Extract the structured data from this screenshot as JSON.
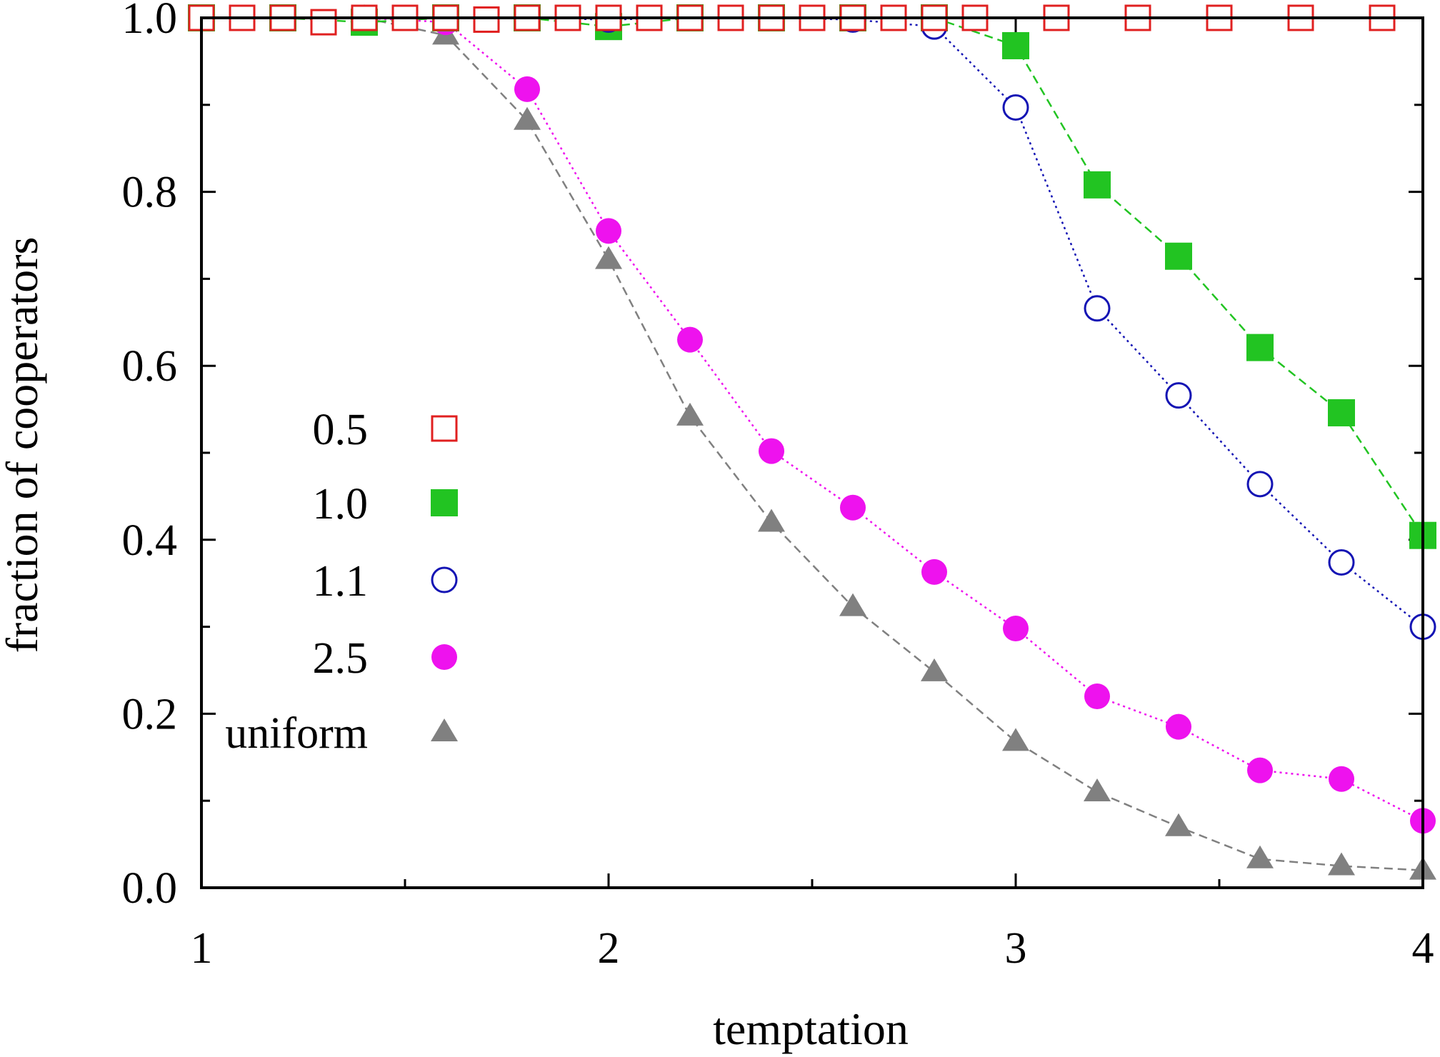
{
  "chart_data": {
    "type": "line",
    "xlabel": "temptation",
    "ylabel": "fraction of cooperators",
    "xlim": [
      1,
      4
    ],
    "ylim": [
      0,
      1
    ],
    "xticks_major": [
      1,
      2,
      3,
      4
    ],
    "xtick_labels": [
      "1",
      "2",
      "3",
      "4"
    ],
    "xticks_minor": [
      1.5,
      2.5,
      3.5
    ],
    "yticks": [
      0.0,
      0.2,
      0.4,
      0.6,
      0.8,
      1.0
    ],
    "ytick_labels": [
      "0.0",
      "0.2",
      "0.4",
      "0.6",
      "0.8",
      "1.0"
    ],
    "yticks_minor": [
      0.1,
      0.3,
      0.5,
      0.7,
      0.9
    ],
    "grid": false,
    "legend_position": "center-left",
    "series": [
      {
        "name": "0.5",
        "marker": "open-square",
        "line": "none",
        "color": "#e02020",
        "x": [
          1.0,
          1.1,
          1.2,
          1.3,
          1.4,
          1.5,
          1.6,
          1.7,
          1.8,
          1.9,
          2.0,
          2.1,
          2.2,
          2.3,
          2.4,
          2.5,
          2.6,
          2.7,
          2.8,
          2.9,
          3.1,
          3.3,
          3.5,
          3.7,
          3.9
        ],
        "y": [
          1.0,
          1.0,
          1.0,
          0.995,
          1.0,
          1.0,
          1.0,
          0.998,
          1.0,
          1.0,
          1.0,
          1.0,
          1.0,
          1.0,
          1.0,
          1.0,
          1.0,
          1.0,
          1.0,
          1.0,
          1.0,
          1.0,
          1.0,
          1.0,
          1.0
        ]
      },
      {
        "name": "1.0",
        "marker": "filled-square",
        "line": "dashed",
        "color": "#22c422",
        "x": [
          1.0,
          1.2,
          1.4,
          1.6,
          1.8,
          2.0,
          2.2,
          2.4,
          2.6,
          2.8,
          3.0,
          3.2,
          3.4,
          3.6,
          3.8,
          4.0
        ],
        "y": [
          1.0,
          1.0,
          0.995,
          1.0,
          1.0,
          0.99,
          1.0,
          1.0,
          1.0,
          1.0,
          0.968,
          0.808,
          0.726,
          0.621,
          0.546,
          0.405
        ]
      },
      {
        "name": "1.1",
        "marker": "open-circle",
        "line": "dotted",
        "color": "#1414b4",
        "x": [
          1.0,
          1.2,
          1.4,
          1.6,
          1.8,
          2.0,
          2.2,
          2.4,
          2.6,
          2.8,
          3.0,
          3.2,
          3.4,
          3.6,
          3.8,
          4.0
        ],
        "y": [
          1.0,
          1.0,
          1.0,
          1.0,
          1.0,
          0.998,
          1.0,
          1.0,
          0.998,
          0.99,
          0.897,
          0.666,
          0.566,
          0.464,
          0.374,
          0.3
        ]
      },
      {
        "name": "2.5",
        "marker": "filled-circle",
        "line": "dotted",
        "color": "#ee12ee",
        "x": [
          1.0,
          1.2,
          1.4,
          1.6,
          1.8,
          2.0,
          2.2,
          2.4,
          2.6,
          2.8,
          3.0,
          3.2,
          3.4,
          3.6,
          3.8,
          4.0
        ],
        "y": [
          1.0,
          1.0,
          1.0,
          0.995,
          0.918,
          0.755,
          0.63,
          0.502,
          0.437,
          0.363,
          0.298,
          0.22,
          0.185,
          0.135,
          0.125,
          0.077
        ]
      },
      {
        "name": "uniform",
        "marker": "filled-triangle",
        "line": "dashed",
        "color": "#808080",
        "x": [
          1.0,
          1.2,
          1.4,
          1.6,
          1.8,
          2.0,
          2.2,
          2.4,
          2.6,
          2.8,
          3.0,
          3.2,
          3.4,
          3.6,
          3.8,
          4.0
        ],
        "y": [
          1.0,
          1.0,
          1.0,
          0.98,
          0.882,
          0.722,
          0.542,
          0.42,
          0.323,
          0.248,
          0.168,
          0.11,
          0.07,
          0.033,
          0.025,
          0.02
        ]
      }
    ]
  }
}
